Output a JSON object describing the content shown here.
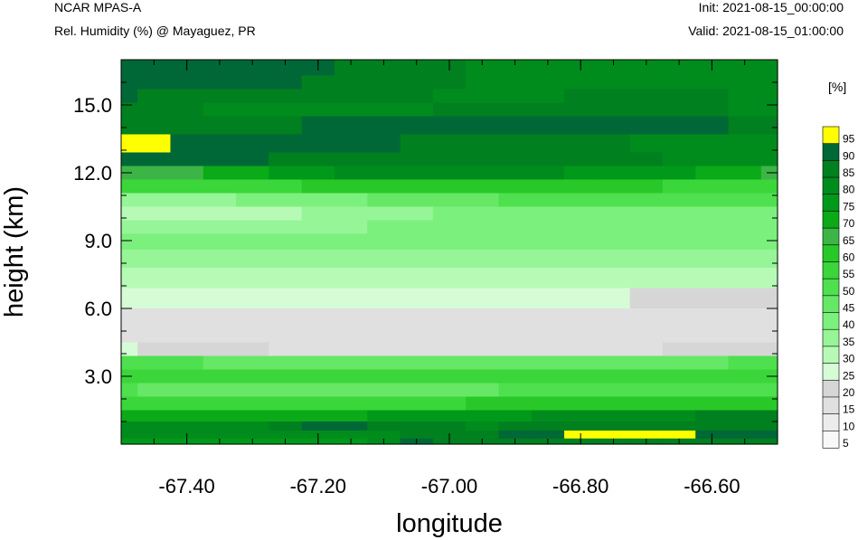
{
  "header": {
    "model": "NCAR MPAS-A",
    "field": "Rel. Humidity (%) @ Mayaguez, PR",
    "init": "Init: 2021-08-15_00:00:00",
    "valid": "Valid: 2021-08-15_01:00:00"
  },
  "chart_data": {
    "type": "heatmap",
    "title": "Rel. Humidity (%) @ Mayaguez, PR",
    "xlabel": "longitude",
    "ylabel": "height (km)",
    "xlim": [
      -67.5,
      -66.5
    ],
    "ylim": [
      0.0,
      17.0
    ],
    "x_ticks": [
      {
        "value": -67.4,
        "label": "-67.40"
      },
      {
        "value": -67.2,
        "label": "-67.20"
      },
      {
        "value": -67.0,
        "label": "-67.00"
      },
      {
        "value": -66.8,
        "label": "-66.80"
      },
      {
        "value": -66.6,
        "label": "-66.60"
      }
    ],
    "y_ticks": [
      {
        "value": 3.0,
        "label": "3.0"
      },
      {
        "value": 6.0,
        "label": "6.0"
      },
      {
        "value": 9.0,
        "label": "9.0"
      },
      {
        "value": 12.0,
        "label": "12.0"
      },
      {
        "value": 15.0,
        "label": "15.0"
      }
    ],
    "colorbar": {
      "units": "[%]",
      "labels": [
        "95",
        "90",
        "85",
        "80",
        "75",
        "70",
        "65",
        "60",
        "55",
        "50",
        "45",
        "40",
        "35",
        "30",
        "25",
        "20",
        "15",
        "10",
        "5"
      ],
      "colors": [
        "#ffff00",
        "#006836",
        "#00801f",
        "#008c1c",
        "#00991a",
        "#0aaa18",
        "#3cb546",
        "#28c828",
        "#3ad63a",
        "#4ee04e",
        "#66e866",
        "#7cf07c",
        "#96f596",
        "#b6fab6",
        "#d6fcd6",
        "#d6d6d6",
        "#e0e0e0",
        "#ececec",
        "#f8f8f8"
      ]
    },
    "z": [
      [
        93,
        94,
        93,
        92,
        92,
        91,
        90,
        88,
        87,
        86,
        85,
        84,
        83,
        83,
        82,
        82,
        82,
        81,
        81,
        80,
        80
      ],
      [
        92,
        92,
        91,
        91,
        90,
        90,
        89,
        88,
        87,
        86,
        85,
        84,
        83,
        83,
        82,
        82,
        82,
        81,
        81,
        80,
        80
      ],
      [
        90,
        89,
        89,
        88,
        88,
        88,
        87,
        86,
        86,
        85,
        84,
        84,
        84,
        84,
        85,
        86,
        86,
        85,
        85,
        84,
        84
      ],
      [
        86,
        86,
        85,
        84,
        83,
        82,
        82,
        82,
        83,
        84,
        86,
        88,
        88,
        88,
        88,
        87,
        86,
        85,
        85,
        84,
        83
      ],
      [
        87,
        88,
        88,
        89,
        89,
        89,
        90,
        90,
        91,
        91,
        92,
        92,
        93,
        93,
        92,
        92,
        92,
        91,
        90,
        89,
        88
      ],
      [
        95,
        95,
        92,
        92,
        91,
        91,
        90,
        90,
        90,
        89,
        89,
        88,
        87,
        87,
        86,
        85,
        84,
        84,
        83,
        82,
        81
      ],
      [
        91,
        91,
        90,
        90,
        90,
        89,
        89,
        89,
        89,
        89,
        88,
        88,
        88,
        87,
        86,
        86,
        85,
        84,
        84,
        84,
        84
      ],
      [
        66,
        67,
        69,
        71,
        73,
        76,
        78,
        80,
        82,
        83,
        83,
        83,
        82,
        81,
        79,
        77,
        76,
        75,
        73,
        71,
        69
      ],
      [
        55,
        56,
        57,
        58,
        59,
        59,
        60,
        61,
        62,
        63,
        64,
        64,
        64,
        63,
        62,
        61,
        60,
        59,
        58,
        57,
        56
      ],
      [
        35,
        36,
        37,
        39,
        40,
        42,
        43,
        44,
        45,
        47,
        48,
        49,
        50,
        51,
        51,
        52,
        52,
        51,
        51,
        50,
        50
      ],
      [
        30,
        30,
        31,
        32,
        33,
        34,
        35,
        36,
        37,
        38,
        40,
        41,
        42,
        43,
        43,
        44,
        44,
        44,
        43,
        43,
        42
      ],
      [
        37,
        37,
        37,
        38,
        38,
        38,
        39,
        39,
        40,
        40,
        41,
        41,
        41,
        41,
        42,
        42,
        42,
        42,
        42,
        41,
        41
      ],
      [
        41,
        41,
        42,
        42,
        42,
        42,
        42,
        43,
        43,
        43,
        43,
        43,
        43,
        42,
        42,
        42,
        42,
        41,
        41,
        41,
        40
      ],
      [
        37,
        37,
        37,
        38,
        38,
        38,
        38,
        38,
        38,
        38,
        38,
        38,
        38,
        38,
        37,
        37,
        37,
        37,
        37,
        37,
        36
      ],
      [
        33,
        33,
        33,
        33,
        33,
        33,
        33,
        33,
        33,
        33,
        33,
        33,
        33,
        33,
        33,
        33,
        33,
        33,
        33,
        33,
        33
      ],
      [
        26,
        26,
        26,
        26,
        26,
        26,
        26,
        26,
        26,
        26,
        25,
        25,
        25,
        25,
        25,
        25,
        24,
        24,
        24,
        23,
        23
      ],
      [
        17,
        17,
        17,
        16,
        16,
        16,
        16,
        16,
        16,
        16,
        16,
        16,
        16,
        16,
        16,
        16,
        16,
        16,
        16,
        16,
        16
      ],
      [
        16,
        16,
        16,
        16,
        16,
        16,
        16,
        16,
        16,
        16,
        15,
        15,
        15,
        15,
        15,
        15,
        15,
        15,
        15,
        15,
        15
      ],
      [
        25,
        23,
        22,
        21,
        20,
        19,
        18,
        18,
        18,
        18,
        17,
        17,
        17,
        18,
        18,
        19,
        19,
        20,
        21,
        22,
        22
      ],
      [
        52,
        51,
        50,
        49,
        48,
        47,
        46,
        46,
        46,
        46,
        46,
        46,
        47,
        47,
        47,
        48,
        48,
        49,
        49,
        50,
        50
      ],
      [
        57,
        57,
        57,
        57,
        57,
        57,
        56,
        56,
        56,
        56,
        56,
        56,
        56,
        56,
        56,
        57,
        57,
        57,
        57,
        58,
        58
      ],
      [
        50,
        49,
        48,
        47,
        47,
        46,
        46,
        46,
        47,
        47,
        48,
        49,
        50,
        51,
        52,
        52,
        53,
        53,
        53,
        53,
        53
      ],
      [
        58,
        58,
        57,
        57,
        56,
        56,
        56,
        57,
        57,
        58,
        59,
        60,
        61,
        61,
        62,
        62,
        62,
        62,
        62,
        62,
        62
      ],
      [
        74,
        74,
        73,
        72,
        71,
        71,
        72,
        74,
        75,
        76,
        77,
        78,
        79,
        80,
        81,
        82,
        83,
        84,
        85,
        86,
        87
      ],
      [
        80,
        80,
        80,
        81,
        82,
        87,
        91,
        90,
        87,
        86,
        85,
        84,
        85,
        86,
        87,
        88,
        89,
        89,
        88,
        88,
        89
      ],
      [
        84,
        84,
        84,
        84,
        84,
        84,
        84,
        84,
        84,
        85,
        86,
        88,
        90,
        94,
        95,
        95,
        95,
        95,
        94,
        94,
        93
      ],
      [
        75,
        75,
        75,
        75,
        75,
        75,
        75,
        75,
        81,
        90,
        88,
        87,
        87,
        88,
        88,
        88,
        88,
        88,
        88,
        88,
        87
      ]
    ],
    "z_heights_km": [
      16.6,
      16.0,
      15.4,
      14.8,
      14.2,
      13.2,
      12.6,
      12.0,
      11.4,
      10.8,
      10.2,
      9.6,
      9.0,
      8.2,
      7.4,
      6.4,
      5.6,
      4.8,
      4.2,
      3.6,
      3.0,
      2.4,
      1.8,
      1.2,
      0.8,
      0.4,
      0.1
    ],
    "z_lons": [
      -67.5,
      -67.45,
      -67.4,
      -67.35,
      -67.3,
      -67.25,
      -67.2,
      -67.15,
      -67.1,
      -67.05,
      -67.0,
      -66.95,
      -66.9,
      -66.85,
      -66.8,
      -66.75,
      -66.7,
      -66.65,
      -66.6,
      -66.55,
      -66.5
    ]
  }
}
